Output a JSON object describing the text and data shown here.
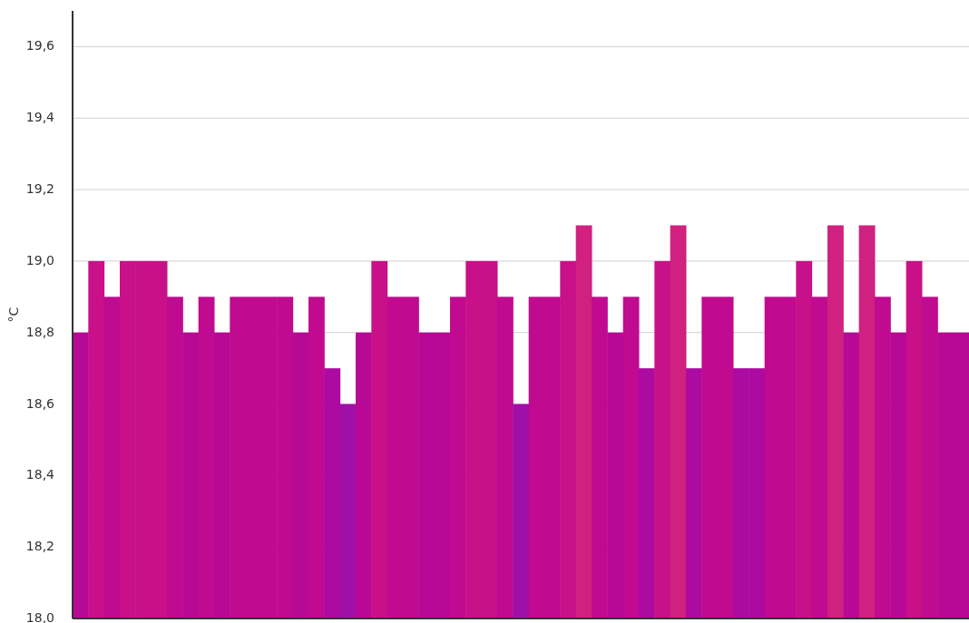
{
  "chart_data": {
    "type": "bar",
    "ylabel": "°C",
    "categories": [
      null,
      null,
      null,
      null,
      null,
      null,
      null,
      null,
      null,
      null,
      null,
      null,
      null,
      null,
      null,
      null,
      null,
      null,
      null,
      null,
      null,
      null,
      null,
      null,
      null,
      null,
      null,
      null,
      null,
      null,
      null,
      null,
      null,
      null,
      null,
      null,
      null,
      null,
      null,
      null,
      null,
      null,
      null,
      null,
      null,
      null,
      null,
      null,
      null,
      null,
      null,
      null,
      null,
      null,
      null,
      null,
      null
    ],
    "values": [
      18.8,
      19.0,
      18.9,
      19.0,
      19.0,
      19.0,
      18.9,
      18.8,
      18.9,
      18.8,
      18.9,
      18.9,
      18.9,
      18.9,
      18.8,
      18.9,
      18.7,
      18.6,
      18.8,
      19.0,
      18.9,
      18.9,
      18.8,
      18.8,
      18.9,
      19.0,
      19.0,
      18.9,
      18.6,
      18.9,
      18.9,
      19.0,
      19.1,
      18.9,
      18.8,
      18.9,
      18.7,
      19.0,
      19.1,
      18.7,
      18.9,
      18.9,
      18.7,
      18.7,
      18.9,
      18.9,
      19.0,
      18.9,
      19.1,
      18.8,
      19.1,
      18.9,
      18.8,
      19.0,
      18.9,
      18.8,
      18.8
    ],
    "colors": [
      "#b80896",
      "#c81088",
      "#c00a90",
      "#c81088",
      "#c81088",
      "#c81088",
      "#c00a90",
      "#b80896",
      "#c00a90",
      "#b80896",
      "#c00a90",
      "#c00a90",
      "#c00a90",
      "#c00a90",
      "#b80896",
      "#c00a90",
      "#ac0aa0",
      "#a010a8",
      "#b80896",
      "#c81088",
      "#c00a90",
      "#c00a90",
      "#b80896",
      "#b80896",
      "#c00a90",
      "#c81088",
      "#c81088",
      "#c00a90",
      "#a010a8",
      "#c00a90",
      "#c00a90",
      "#c81088",
      "#d02080",
      "#c00a90",
      "#b80896",
      "#c00a90",
      "#ac0aa0",
      "#c81088",
      "#d02080",
      "#ac0aa0",
      "#c00a90",
      "#c00a90",
      "#ac0aa0",
      "#ac0aa0",
      "#c00a90",
      "#c00a90",
      "#c81088",
      "#c00a90",
      "#d02080",
      "#b80896",
      "#d02080",
      "#c00a90",
      "#b80896",
      "#c81088",
      "#c00a90",
      "#b80896",
      "#b80896"
    ],
    "ylim": [
      18.0,
      19.7
    ],
    "yticks": [
      {
        "value": 18.0,
        "label": "18,0"
      },
      {
        "value": 18.2,
        "label": "18,2"
      },
      {
        "value": 18.4,
        "label": "18,4"
      },
      {
        "value": 18.6,
        "label": "18,6"
      },
      {
        "value": 18.8,
        "label": "18,8"
      },
      {
        "value": 19.0,
        "label": "19,0"
      },
      {
        "value": 19.2,
        "label": "19,2"
      },
      {
        "value": 19.4,
        "label": "19,4"
      },
      {
        "value": 19.6,
        "label": "19,6"
      }
    ],
    "grid": "y"
  }
}
